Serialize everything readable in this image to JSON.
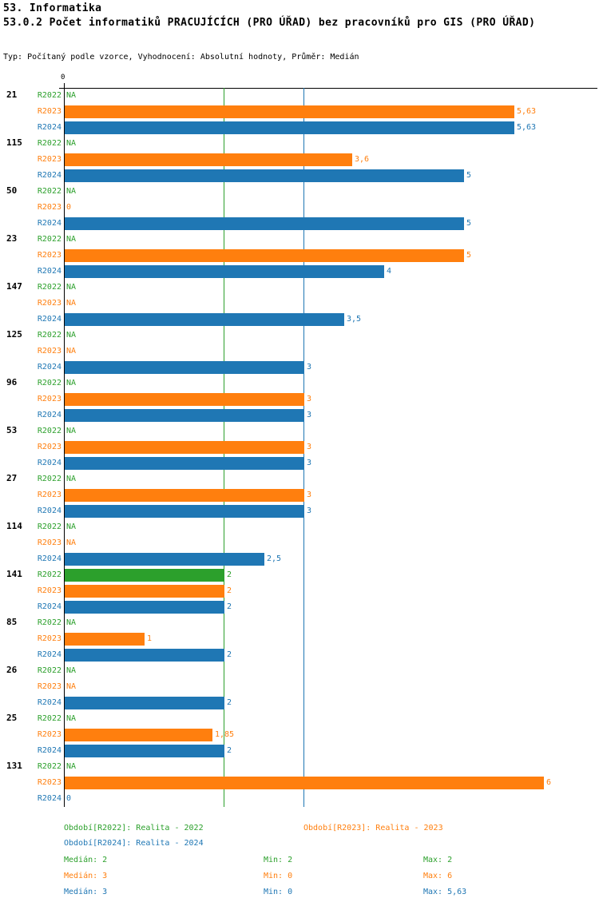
{
  "title": "53. Informatika",
  "subtitle": "53.0.2 Počet informatiků PRACUJÍCÍCH (PRO ÚŘAD) bez pracovníků pro GIS (PRO ÚŘAD)",
  "meta": "Typ: Počítaný podle vzorce, Vyhodnocení: Absolutní hodnoty, Průměr: Medián",
  "chart_data": {
    "type": "bar",
    "orientation": "horizontal",
    "zero_label": "0",
    "xlim": [
      0,
      6.7
    ],
    "grid": "on",
    "legend_position": "bottom",
    "series": [
      {
        "name": "R2022",
        "color": "#2ca02c"
      },
      {
        "name": "R2023",
        "color": "#ff7f0e"
      },
      {
        "name": "R2024",
        "color": "#1f77b4"
      }
    ],
    "gridlines": [
      {
        "value": 2,
        "color": "#2ca02c"
      },
      {
        "value": 3,
        "color": "#1f77b4"
      }
    ],
    "groups": [
      {
        "id": "21",
        "values": [
          null,
          5.63,
          5.63
        ],
        "labels": [
          "NA",
          "5,63",
          "5,63"
        ]
      },
      {
        "id": "115",
        "values": [
          null,
          3.6,
          5
        ],
        "labels": [
          "NA",
          "3,6",
          "5"
        ]
      },
      {
        "id": "50",
        "values": [
          null,
          0,
          5
        ],
        "labels": [
          "NA",
          "0",
          "5"
        ]
      },
      {
        "id": "23",
        "values": [
          null,
          5,
          4
        ],
        "labels": [
          "NA",
          "5",
          "4"
        ]
      },
      {
        "id": "147",
        "values": [
          null,
          null,
          3.5
        ],
        "labels": [
          "NA",
          "NA",
          "3,5"
        ]
      },
      {
        "id": "125",
        "values": [
          null,
          null,
          3
        ],
        "labels": [
          "NA",
          "NA",
          "3"
        ]
      },
      {
        "id": "96",
        "values": [
          null,
          3,
          3
        ],
        "labels": [
          "NA",
          "3",
          "3"
        ]
      },
      {
        "id": "53",
        "values": [
          null,
          3,
          3
        ],
        "labels": [
          "NA",
          "3",
          "3"
        ]
      },
      {
        "id": "27",
        "values": [
          null,
          3,
          3
        ],
        "labels": [
          "NA",
          "3",
          "3"
        ]
      },
      {
        "id": "114",
        "values": [
          null,
          null,
          2.5
        ],
        "labels": [
          "NA",
          "NA",
          "2,5"
        ]
      },
      {
        "id": "141",
        "values": [
          2,
          2,
          2
        ],
        "labels": [
          "2",
          "2",
          "2"
        ]
      },
      {
        "id": "85",
        "values": [
          null,
          1,
          2
        ],
        "labels": [
          "NA",
          "1",
          "2"
        ]
      },
      {
        "id": "26",
        "values": [
          null,
          null,
          2
        ],
        "labels": [
          "NA",
          "NA",
          "2"
        ]
      },
      {
        "id": "25",
        "values": [
          null,
          1.85,
          2
        ],
        "labels": [
          "NA",
          "1,85",
          "2"
        ]
      },
      {
        "id": "131",
        "values": [
          null,
          6,
          0
        ],
        "labels": [
          "NA",
          "6",
          "0"
        ]
      }
    ]
  },
  "legend": {
    "r2022": "Období[R2022]: Realita - 2022",
    "r2023": "Období[R2023]: Realita - 2023",
    "r2024": "Období[R2024]: Realita - 2024"
  },
  "stats": {
    "r2022": {
      "median": "Medián: 2",
      "min": "Min: 2",
      "max": "Max: 2"
    },
    "r2023": {
      "median": "Medián: 3",
      "min": "Min: 0",
      "max": "Max: 6"
    },
    "r2024": {
      "median": "Medián: 3",
      "min": "Min: 0",
      "max": "Max: 5,63"
    }
  }
}
